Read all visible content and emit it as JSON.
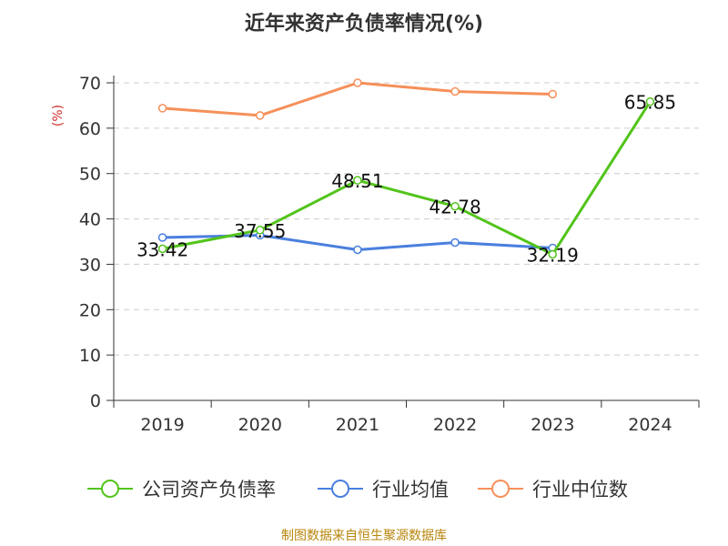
{
  "chart_data": {
    "type": "line",
    "title": "近年来资产负债率情况(%)",
    "ylabel": "(%)",
    "xlabel": "",
    "categories": [
      "2019",
      "2020",
      "2021",
      "2022",
      "2023",
      "2024"
    ],
    "ylim": [
      0,
      70
    ],
    "yticks": [
      0,
      10,
      20,
      30,
      40,
      50,
      60,
      70
    ],
    "grid": true,
    "legend_position": "bottom",
    "series": [
      {
        "name": "公司资产负债率",
        "color": "#52c41a",
        "values": [
          33.42,
          37.55,
          48.51,
          42.78,
          32.19,
          65.85
        ],
        "show_labels": true,
        "labels": [
          "33.42",
          "37.55",
          "48.51",
          "42.78",
          "32.19",
          "65.85"
        ]
      },
      {
        "name": "行业均值",
        "color": "#4a7fde",
        "values": [
          35.9,
          36.4,
          33.2,
          34.8,
          33.6,
          null
        ],
        "show_labels": false
      },
      {
        "name": "行业中位数",
        "color": "#f5905a",
        "values": [
          64.4,
          62.8,
          70.0,
          68.1,
          67.5,
          null
        ],
        "show_labels": false
      }
    ]
  },
  "source": "制图数据来自恒生聚源数据库"
}
